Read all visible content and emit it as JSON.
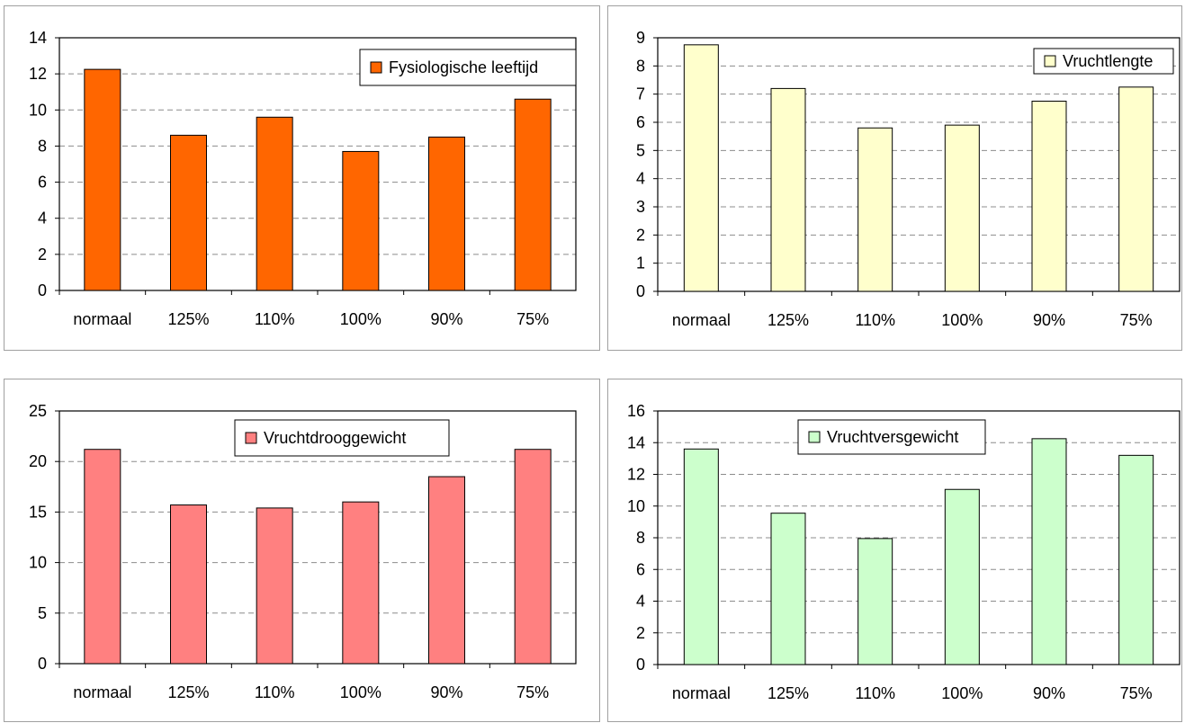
{
  "chart_data": [
    {
      "type": "bar",
      "categories": [
        "normaal",
        "125%",
        "110%",
        "100%",
        "90%",
        "75%"
      ],
      "series": [
        {
          "name": "Fysiologische leeftijd",
          "values": [
            12.25,
            8.6,
            9.6,
            7.7,
            8.5,
            10.6
          ]
        }
      ],
      "ylim": [
        0,
        14
      ],
      "yticks": [
        "0",
        "2",
        "4",
        "6",
        "8",
        "10",
        "12",
        "14"
      ],
      "grid": true,
      "legend": "top-right",
      "bar_color": "#FF6600"
    },
    {
      "type": "bar",
      "categories": [
        "normaal",
        "125%",
        "110%",
        "100%",
        "90%",
        "75%"
      ],
      "series": [
        {
          "name": "Vruchtlengte",
          "values": [
            8.75,
            7.2,
            5.8,
            5.9,
            6.75,
            7.25
          ]
        }
      ],
      "ylim": [
        0,
        9
      ],
      "yticks": [
        "0",
        "1",
        "2",
        "3",
        "4",
        "5",
        "6",
        "7",
        "8",
        "9"
      ],
      "grid": true,
      "legend": "top-right",
      "bar_color": "#FFFFCC"
    },
    {
      "type": "bar",
      "categories": [
        "normaal",
        "125%",
        "110%",
        "100%",
        "90%",
        "75%"
      ],
      "series": [
        {
          "name": "Vruchtdrooggewicht",
          "values": [
            21.2,
            15.7,
            15.4,
            16.0,
            18.5,
            21.2
          ]
        }
      ],
      "ylim": [
        0,
        25
      ],
      "yticks": [
        "0",
        "5",
        "10",
        "15",
        "20",
        "25"
      ],
      "grid": true,
      "legend": "top-center",
      "bar_color": "#FF8080"
    },
    {
      "type": "bar",
      "categories": [
        "normaal",
        "125%",
        "110%",
        "100%",
        "90%",
        "75%"
      ],
      "series": [
        {
          "name": "Vruchtversgewicht",
          "values": [
            13.6,
            9.55,
            7.95,
            11.05,
            14.25,
            13.2
          ]
        }
      ],
      "ylim": [
        0,
        16
      ],
      "yticks": [
        "0",
        "2",
        "4",
        "6",
        "8",
        "10",
        "12",
        "14",
        "16"
      ],
      "grid": true,
      "legend": "top-center",
      "bar_color": "#CCFFCC"
    }
  ]
}
